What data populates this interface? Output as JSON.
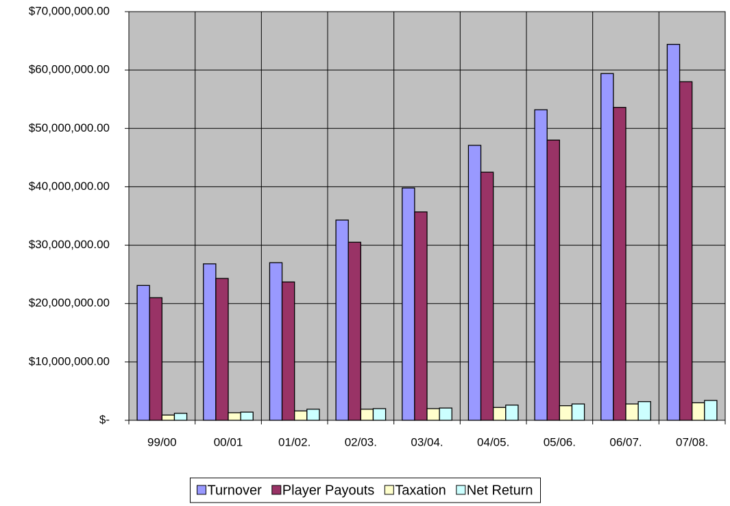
{
  "chart_data": {
    "type": "bar",
    "categories": [
      "99/00",
      "00/01",
      "01/02.",
      "02/03.",
      "03/04.",
      "04/05.",
      "05/06.",
      "06/07.",
      "07/08."
    ],
    "series": [
      {
        "name": "Turnover",
        "color": "#9999ff",
        "values": [
          23100000,
          26800000,
          27000000,
          34300000,
          39800000,
          47100000,
          53200000,
          59400000,
          64400000
        ]
      },
      {
        "name": "Player Payouts",
        "color": "#993366",
        "values": [
          21000000,
          24300000,
          23700000,
          30500000,
          35700000,
          42500000,
          48000000,
          53600000,
          58000000
        ]
      },
      {
        "name": "Taxation",
        "color": "#ffffcc",
        "values": [
          900000,
          1300000,
          1600000,
          1900000,
          2000000,
          2200000,
          2500000,
          2800000,
          3000000
        ]
      },
      {
        "name": "Net Return",
        "color": "#ccffff",
        "values": [
          1200000,
          1400000,
          1900000,
          2000000,
          2100000,
          2600000,
          2800000,
          3200000,
          3400000
        ]
      }
    ],
    "ylim": [
      0,
      70000000
    ],
    "yticks": [
      {
        "value": 0,
        "label": "$-"
      },
      {
        "value": 10000000,
        "label": "$10,000,000.00"
      },
      {
        "value": 20000000,
        "label": "$20,000,000.00"
      },
      {
        "value": 30000000,
        "label": "$30,000,000.00"
      },
      {
        "value": 40000000,
        "label": "$40,000,000.00"
      },
      {
        "value": 50000000,
        "label": "$50,000,000.00"
      },
      {
        "value": 60000000,
        "label": "$60,000,000.00"
      },
      {
        "value": 70000000,
        "label": "$70,000,000.00"
      }
    ],
    "grid": true,
    "plot_background": "#c0c0c0",
    "legend": "bottom"
  }
}
